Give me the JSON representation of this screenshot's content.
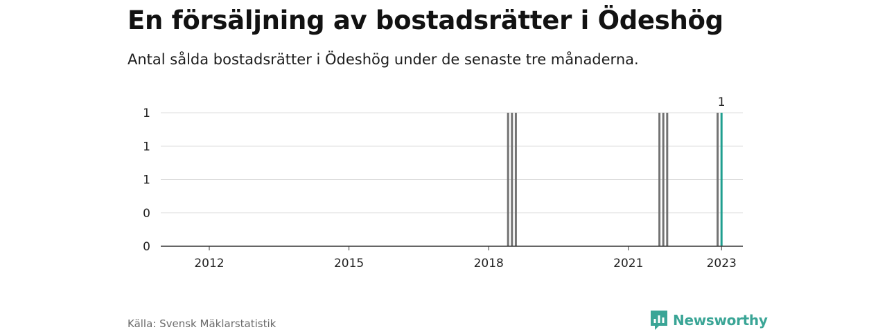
{
  "header": {
    "title": "En försäljning av bostadsrätter i Ödeshög",
    "subtitle": "Antal sålda bostadsrätter i Ödeshög under de senaste tre månaderna."
  },
  "footer": {
    "source": "Källa: Svensk Mäklarstatistik",
    "brand": "Newsworthy"
  },
  "colors": {
    "bar": "#737373",
    "highlight": "#1f9e8f",
    "grid": "#dddddd",
    "axis": "#333333",
    "brand": "#3aa596"
  },
  "icons": {
    "brand": "newsworthy-logo-icon"
  },
  "chart_data": {
    "type": "bar",
    "title": "En försäljning av bostadsrätter i Ödeshög",
    "xlabel": "",
    "ylabel": "",
    "xlim": [
      "2011-01",
      "2023-07"
    ],
    "ylim": [
      0,
      1
    ],
    "y_tick_labels": [
      "0",
      "0",
      "1",
      "1",
      "1"
    ],
    "x_tick_labels": [
      "2012",
      "2015",
      "2018",
      "2021",
      "2023"
    ],
    "grid": true,
    "legend": "none",
    "x": [
      "2018-06",
      "2018-07",
      "2018-08",
      "2021-09",
      "2021-10",
      "2021-11",
      "2022-12",
      "2023-01"
    ],
    "values": [
      1,
      1,
      1,
      1,
      1,
      1,
      1,
      1
    ],
    "highlight_index": 7,
    "highlight_label": "1"
  }
}
